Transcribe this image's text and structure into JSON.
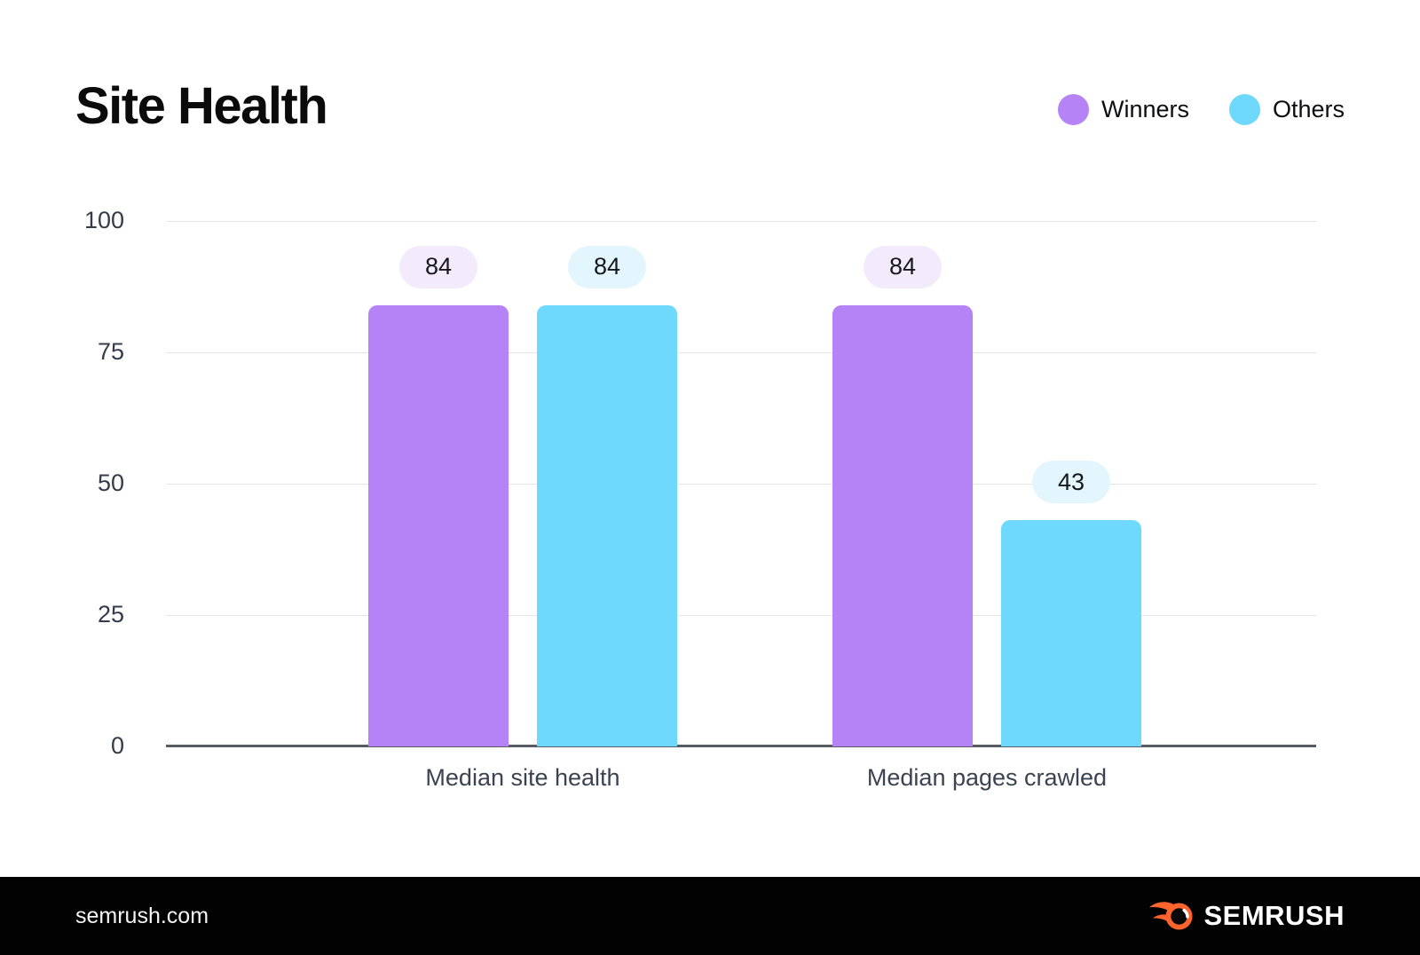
{
  "title": "Site Health",
  "legend": [
    {
      "label": "Winners",
      "color": "#b583f5"
    },
    {
      "label": "Others",
      "color": "#6ed9fc"
    }
  ],
  "chart_data": {
    "type": "bar",
    "title": "Site Health",
    "categories": [
      "Median site health",
      "Median pages crawled"
    ],
    "series": [
      {
        "name": "Winners",
        "values": [
          84,
          84
        ],
        "color": "#b583f5",
        "label_pill_color": "#f3eafc"
      },
      {
        "name": "Others",
        "values": [
          84,
          43
        ],
        "color": "#6ed9fc",
        "label_pill_color": "#e4f6fd"
      }
    ],
    "xlabel": "",
    "ylabel": "",
    "ylim": [
      0,
      100
    ],
    "yticks": [
      100,
      75,
      50,
      25,
      0
    ],
    "grid": true,
    "data_labels": true,
    "legend_position": "top-right"
  },
  "colors": {
    "gridline": "#e4e4e8",
    "baseline": "#575b63",
    "footer_bg": "#020202",
    "brand_orange": "#ff642d"
  },
  "footer": {
    "site": "semrush.com",
    "brand": "SEMRUSH"
  }
}
